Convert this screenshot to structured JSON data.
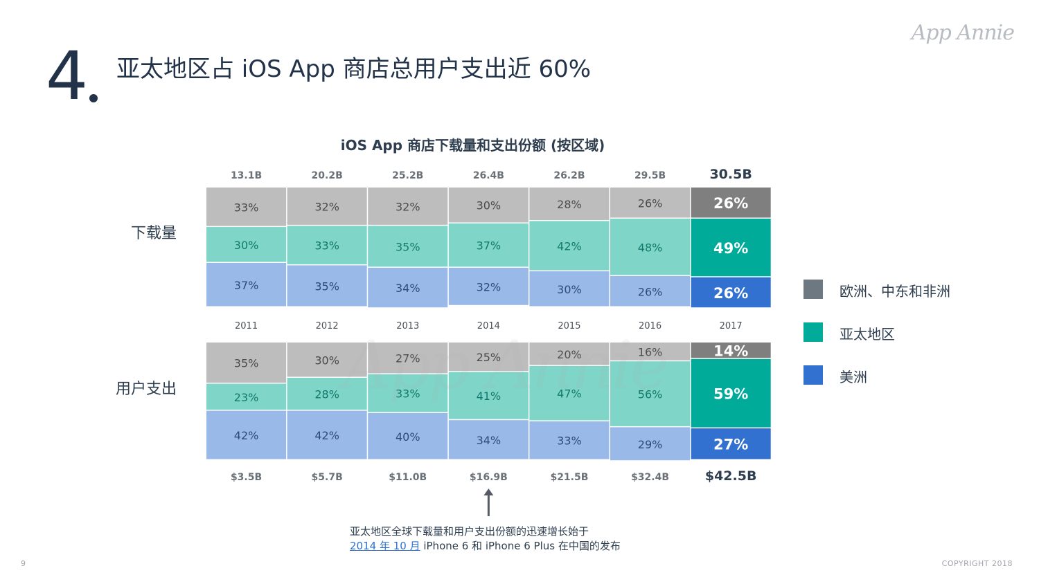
{
  "header": {
    "section_number": "4",
    "title": "亚太地区占 iOS App 商店总用户支出近 60%",
    "logo_text": "App Annie"
  },
  "chart_data": {
    "type": "bar",
    "title": "iOS App 商店下载量和支出份额 (按区域)",
    "categories": [
      "2011",
      "2012",
      "2013",
      "2014",
      "2015",
      "2016",
      "2017"
    ],
    "highlight_category": "2017",
    "panels": [
      {
        "label": "下载量",
        "totals": [
          "13.1B",
          "20.2B",
          "25.2B",
          "26.4B",
          "26.2B",
          "29.5B",
          "30.5B"
        ],
        "series": [
          {
            "name": "欧洲、中东和非洲",
            "values": [
              33,
              32,
              32,
              30,
              28,
              26,
              26
            ]
          },
          {
            "name": "亚太地区",
            "values": [
              30,
              33,
              35,
              37,
              42,
              48,
              49
            ]
          },
          {
            "name": "美洲",
            "values": [
              37,
              35,
              34,
              32,
              30,
              26,
              26
            ]
          }
        ]
      },
      {
        "label": "用户支出",
        "totals": [
          "$3.5B",
          "$5.7B",
          "$11.0B",
          "$16.9B",
          "$21.5B",
          "$32.4B",
          "$42.5B"
        ],
        "series": [
          {
            "name": "欧洲、中东和非洲",
            "values": [
              35,
              30,
              27,
              25,
              20,
              16,
              14
            ]
          },
          {
            "name": "亚太地区",
            "values": [
              23,
              28,
              33,
              41,
              47,
              56,
              59
            ]
          },
          {
            "name": "美洲",
            "values": [
              42,
              42,
              40,
              34,
              33,
              29,
              27
            ]
          }
        ]
      }
    ],
    "colors": {
      "emea": "#bdbdbd",
      "apac": "#7fd5c8",
      "americas": "#99b9e8",
      "emea_highlight": "#7f7f7f",
      "apac_highlight": "#00ab9a",
      "americas_highlight": "#3271d0",
      "label_emea": "#4a4a4a",
      "label_apac": "#117a6c",
      "label_americas": "#2c4a7a"
    }
  },
  "legend": [
    {
      "label": "欧洲、中东和非洲",
      "color": "#6e7880"
    },
    {
      "label": "亚太地区",
      "color": "#00ab9a"
    },
    {
      "label": "美洲",
      "color": "#3271d0"
    }
  ],
  "note": {
    "line1": "亚太地区全球下载量和用户支出份额的迅速增长始于",
    "link": "2014 年 10 月",
    "line2_rest": " iPhone 6 和 iPhone 6 Plus 在中国的发布"
  },
  "footer": {
    "page_number": "9",
    "copyright": "COPYRIGHT 2018"
  }
}
